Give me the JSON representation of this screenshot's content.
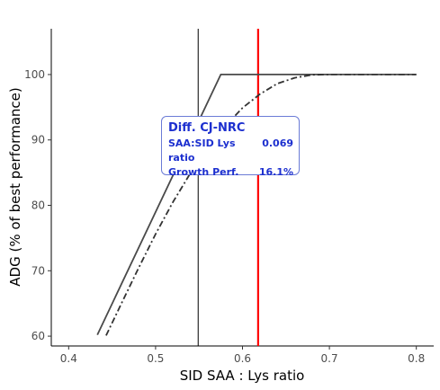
{
  "chart_data": {
    "type": "line",
    "xlabel": "SID SAA : Lys ratio",
    "ylabel": "ADG (% of best performance)",
    "xlim": [
      0.38,
      0.82
    ],
    "ylim": [
      58.5,
      107
    ],
    "x_ticks": [
      "0.4",
      "0.5",
      "0.6",
      "0.7",
      "0.8"
    ],
    "y_ticks": [
      "60",
      "70",
      "80",
      "90",
      "100"
    ],
    "grid": false,
    "series": [
      {
        "style": "solid",
        "color": "#4a4a4a",
        "x": [
          0.433,
          0.575,
          0.8
        ],
        "y": [
          60.2,
          100,
          100
        ]
      },
      {
        "style": "dashdot",
        "color": "#333333",
        "x": [
          0.443,
          0.46,
          0.48,
          0.5,
          0.52,
          0.54,
          0.56,
          0.58,
          0.6,
          0.62,
          0.64,
          0.66,
          0.68,
          0.7,
          0.8
        ],
        "y": [
          60.1,
          64.8,
          70.3,
          75.6,
          80.5,
          84.9,
          88.8,
          92.1,
          94.9,
          97.0,
          98.6,
          99.5,
          99.95,
          100,
          100
        ]
      }
    ],
    "vlines": [
      {
        "x": 0.549,
        "color": "#000000"
      },
      {
        "x": 0.618,
        "color": "#ff0000"
      }
    ],
    "annotation": {
      "title": "Diff. CJ-NRC",
      "rows": [
        {
          "label": "SAA:SID Lys ratio",
          "value": "0.069"
        },
        {
          "label": "Growth Perf.",
          "value": "16.1%"
        }
      ]
    }
  }
}
